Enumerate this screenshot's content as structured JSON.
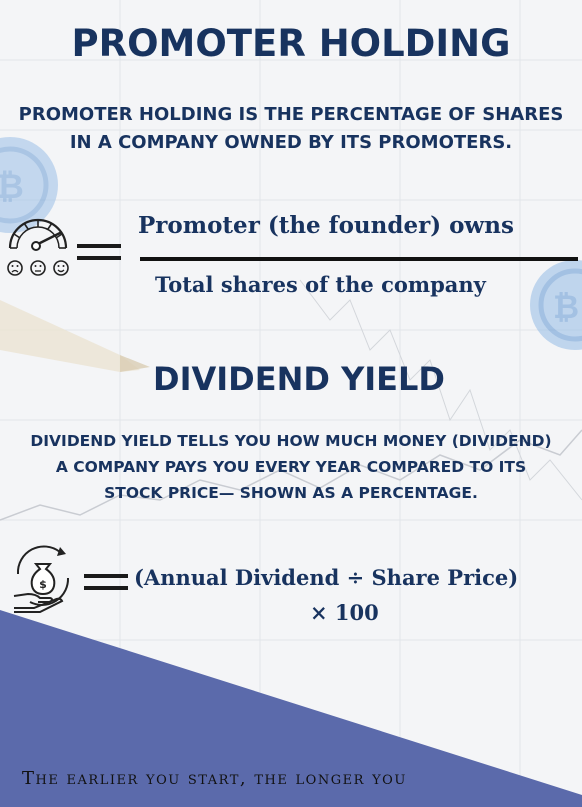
{
  "section1": {
    "title": "PROMOTER HOLDING",
    "description_lines": [
      "PROMOTER HOLDING IS THE PERCENTAGE OF SHARES",
      "IN A COMPANY OWNED BY ITS PROMOTERS."
    ],
    "formula": {
      "numerator": "Promoter (the founder) owns",
      "denominator": "Total shares of the company"
    },
    "icon": "sentiment-gauge-icon"
  },
  "section2": {
    "title": "DIVIDEND YIELD",
    "description_lines": [
      "DIVIDEND YIELD TELLS YOU HOW MUCH MONEY (DIVIDEND)",
      "A COMPANY PAYS YOU EVERY YEAR COMPARED TO ITS",
      "STOCK PRICE— SHOWN AS A PERCENTAGE."
    ],
    "formula": {
      "line1": "(Annual Dividend ÷ Share Price)",
      "line2": "× 100"
    },
    "icon": "money-bag-hand-icon"
  },
  "footer": {
    "text": "The earlier you start, the longer you"
  },
  "colors": {
    "text_navy": "#18335f",
    "corner_blue": "#5b6aab",
    "background": "#f4f5f7",
    "coin_blue": "#6f9fd6"
  }
}
